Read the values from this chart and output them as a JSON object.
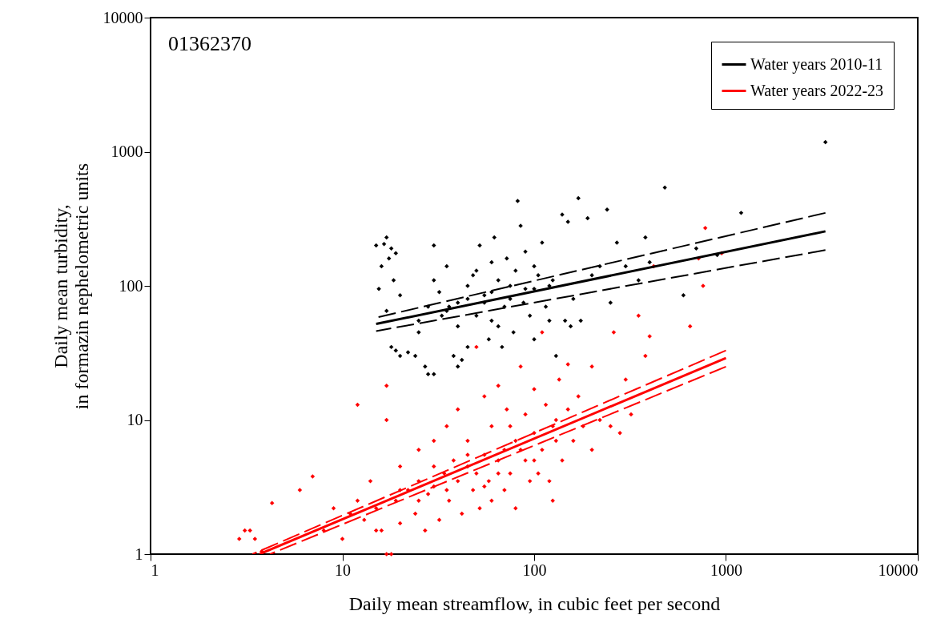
{
  "chart_data": {
    "type": "scatter",
    "xlabel": "Daily mean streamflow, in cubic feet per second",
    "ylabel": "Daily mean turbidity, in formazin nephelometric units",
    "annotations": [
      "01362370"
    ],
    "log": "xy",
    "xlim": [
      1,
      10000
    ],
    "ylim": [
      1,
      10000
    ],
    "xticks": [
      1,
      10,
      100,
      1000,
      10000
    ],
    "yticks": [
      1,
      10,
      100,
      1000,
      10000
    ],
    "grid": false,
    "legend": "top right",
    "series": [
      {
        "marker": "diamond",
        "color": "#000000",
        "x": [
          15,
          15.5,
          16,
          16.5,
          17,
          17.5,
          18,
          18.5,
          19,
          20,
          17,
          18,
          19,
          20,
          22,
          24,
          25,
          27,
          28,
          30,
          30,
          32,
          33,
          35,
          36,
          38,
          40,
          42,
          45,
          45,
          48,
          50,
          50,
          52,
          55,
          58,
          60,
          60,
          62,
          65,
          65,
          68,
          70,
          72,
          75,
          78,
          80,
          82,
          85,
          88,
          90,
          95,
          100,
          100,
          105,
          110,
          115,
          120,
          125,
          130,
          140,
          145,
          150,
          155,
          160,
          170,
          175,
          190,
          200,
          220,
          240,
          250,
          270,
          300,
          350,
          380,
          400,
          480,
          600,
          700,
          900,
          1200,
          3300,
          25,
          28,
          35,
          40,
          55,
          75,
          90,
          120,
          40,
          30,
          60,
          45,
          100
        ],
        "values": [
          200,
          95,
          140,
          205,
          230,
          160,
          190,
          110,
          175,
          85,
          65,
          35,
          33,
          30,
          32,
          30,
          45,
          25,
          22,
          22,
          200,
          90,
          60,
          140,
          70,
          30,
          25,
          28,
          80,
          35,
          120,
          60,
          130,
          200,
          75,
          40,
          90,
          150,
          230,
          110,
          50,
          35,
          70,
          160,
          100,
          45,
          130,
          430,
          280,
          75,
          180,
          60,
          95,
          40,
          120,
          210,
          70,
          55,
          110,
          30,
          340,
          55,
          300,
          50,
          80,
          450,
          55,
          320,
          120,
          140,
          370,
          75,
          210,
          140,
          110,
          230,
          150,
          540,
          85,
          190,
          170,
          350,
          1180,
          55,
          70,
          65,
          75,
          85,
          80,
          95,
          100,
          50,
          110,
          55,
          100,
          140
        ]
      },
      {
        "marker": "diamond",
        "color": "#ff0000",
        "x": [
          2.9,
          3.1,
          3.3,
          3.5,
          3.8,
          4.3,
          6,
          7,
          8,
          9,
          10,
          11,
          12,
          12,
          13,
          14,
          15,
          16,
          17,
          17,
          17,
          18,
          19,
          20,
          20,
          22,
          24,
          25,
          25,
          27,
          28,
          30,
          30,
          32,
          34,
          35,
          36,
          38,
          40,
          40,
          42,
          45,
          45,
          48,
          50,
          50,
          52,
          55,
          55,
          58,
          60,
          60,
          65,
          65,
          70,
          70,
          72,
          75,
          80,
          80,
          85,
          90,
          90,
          95,
          100,
          100,
          105,
          110,
          110,
          115,
          120,
          125,
          125,
          130,
          135,
          140,
          150,
          150,
          160,
          170,
          180,
          200,
          200,
          220,
          250,
          260,
          280,
          300,
          320,
          350,
          380,
          400,
          420,
          650,
          720,
          760,
          780,
          950,
          30,
          35,
          45,
          55,
          65,
          85,
          25,
          75,
          130,
          20,
          15,
          100
        ],
        "values": [
          1.3,
          1.5,
          1.5,
          1.3,
          1.05,
          2.4,
          3,
          3.8,
          1.5,
          2.2,
          1.3,
          2,
          13,
          2.5,
          1.8,
          3.5,
          2.2,
          1.5,
          1,
          18,
          10,
          1,
          2.5,
          4.5,
          1.7,
          3,
          2,
          6,
          3.5,
          1.5,
          2.8,
          7,
          3.2,
          1.8,
          4,
          9,
          2.5,
          5,
          3.5,
          12,
          2,
          4.5,
          7,
          3,
          4,
          35,
          2.2,
          5.5,
          15,
          3.5,
          9,
          2.5,
          5,
          18,
          3,
          6,
          12,
          4,
          7,
          2.2,
          25,
          5,
          11,
          3.5,
          8,
          17,
          4,
          6,
          45,
          13,
          3.5,
          9,
          2.5,
          7,
          20,
          5,
          12,
          26,
          7,
          15,
          9,
          6,
          25,
          10,
          9,
          45,
          8,
          20,
          11,
          60,
          30,
          42,
          140,
          50,
          160,
          100,
          270,
          175,
          4.5,
          3,
          5.5,
          3.2,
          4,
          6,
          2.5,
          9,
          10,
          3,
          1.5,
          5
        ]
      },
      {
        "type": "line",
        "name": "Water years 2010-11",
        "color": "#000000",
        "line_style": "solid",
        "x": [
          15,
          3300
        ],
        "values": [
          52,
          255
        ]
      },
      {
        "type": "line",
        "color": "#000000",
        "line_style": "dashed",
        "x": [
          15,
          3300
        ],
        "values": [
          58,
          350
        ]
      },
      {
        "type": "line",
        "color": "#000000",
        "line_style": "dashed",
        "x": [
          15,
          3300
        ],
        "values": [
          46,
          185
        ]
      },
      {
        "type": "line",
        "name": "Water years 2022-23",
        "color": "#ff0000",
        "line_style": "solid",
        "x": [
          3.7,
          1000
        ],
        "values": [
          1,
          29
        ]
      },
      {
        "type": "line",
        "color": "#ff0000",
        "line_style": "dashed",
        "x": [
          3.4,
          1000
        ],
        "values": [
          1,
          33
        ]
      },
      {
        "type": "line",
        "color": "#ff0000",
        "line_style": "dashed",
        "x": [
          4.2,
          1000
        ],
        "values": [
          1,
          25
        ]
      }
    ]
  }
}
